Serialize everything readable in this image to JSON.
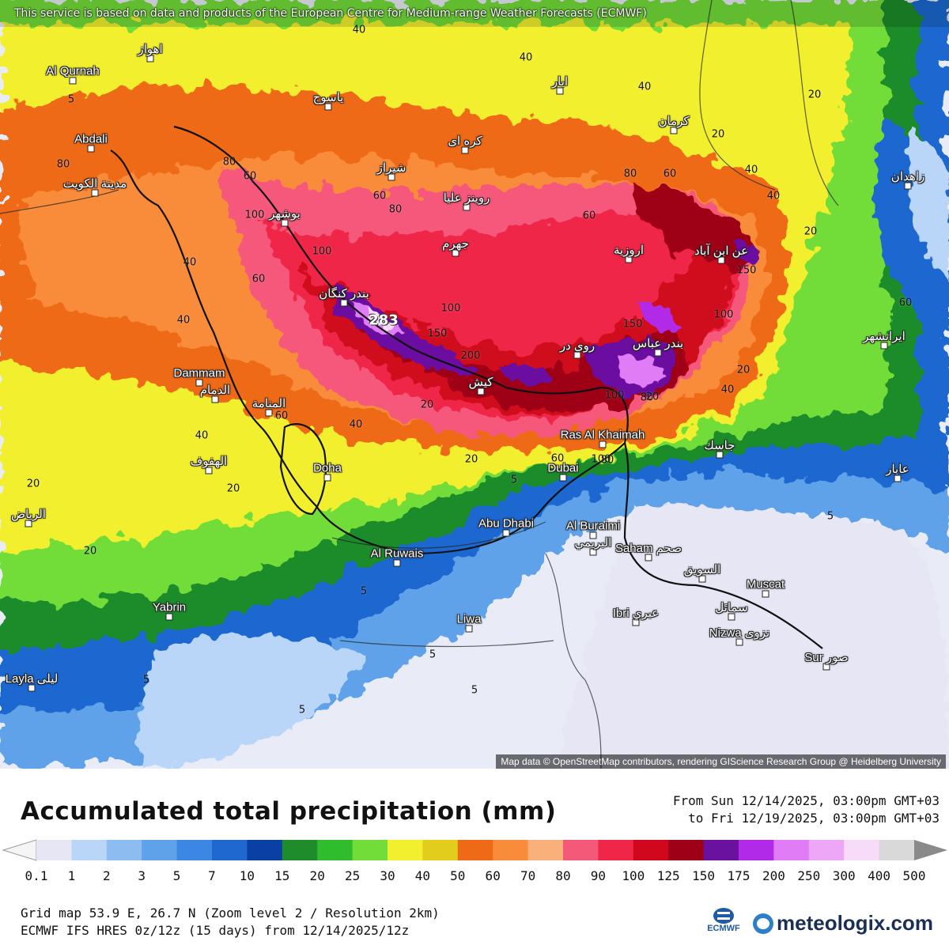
{
  "map": {
    "top_notice": "This service is based on data and products of the European Centre for Medium-range Weather Forecasts (ECMWF)",
    "attribution": "Map data © OpenStreetMap contributors, rendering GIScience Research Group @ Heidelberg University",
    "cities": [
      {
        "name": "Al Qurnah"
      },
      {
        "name": "Abdali"
      },
      {
        "name": "مدينة الكويت"
      },
      {
        "name": "اهواز"
      },
      {
        "name": "بوشهر"
      },
      {
        "name": "شيراز"
      },
      {
        "name": "ياسوج"
      },
      {
        "name": "كره اى"
      },
      {
        "name": "ابار"
      },
      {
        "name": "كرمان"
      },
      {
        "name": "زاهدان"
      },
      {
        "name": "جهرم"
      },
      {
        "name": "روينز عليا"
      },
      {
        "name": "اروزية"
      },
      {
        "name": "عن ابن آباد"
      },
      {
        "name": "بندر كنگان"
      },
      {
        "name": "روى در"
      },
      {
        "name": "بندر عباس"
      },
      {
        "name": "كيش"
      },
      {
        "name": "Dammam"
      },
      {
        "name": "الدمام"
      },
      {
        "name": "المنامة"
      },
      {
        "name": "الهفوف"
      },
      {
        "name": "Doha"
      },
      {
        "name": "الرياض"
      },
      {
        "name": "Ras Al Khaimah"
      },
      {
        "name": "Dubai"
      },
      {
        "name": "Abu Dhabi"
      },
      {
        "name": "Al Buraimi"
      },
      {
        "name": "البريمي"
      },
      {
        "name": "Al Ruwais"
      },
      {
        "name": "Saham صحم"
      },
      {
        "name": "السويق"
      },
      {
        "name": "Muscat"
      },
      {
        "name": "سمائل"
      },
      {
        "name": "Ibri عبري"
      },
      {
        "name": "Nizwa نزوى"
      },
      {
        "name": "Sur صور"
      },
      {
        "name": "Liwa"
      },
      {
        "name": "Yabrin"
      },
      {
        "name": "Layla ليلى"
      },
      {
        "name": "ايرانشهر"
      },
      {
        "name": "جاسك"
      },
      {
        "name": "عابار"
      }
    ],
    "contour_labels": [
      "40",
      "40",
      "40",
      "20",
      "20",
      "60",
      "80",
      "80",
      "100",
      "100",
      "150",
      "200",
      "283",
      "150",
      "100",
      "80",
      "60",
      "60",
      "40",
      "40",
      "40",
      "20",
      "20",
      "20",
      "5",
      "5",
      "5",
      "5",
      "5",
      "5",
      "5",
      "60",
      "40",
      "40",
      "40",
      "20",
      "20",
      "20",
      "60",
      "80",
      "80",
      "100",
      "60",
      "40",
      "20",
      "5",
      "20",
      "60",
      "80",
      "100",
      "150",
      "100",
      "60"
    ]
  },
  "legend": {
    "title": "Accumulated total precipitation (mm)",
    "period_from": "From Sun 12/14/2025, 03:00pm GMT+03",
    "period_to": "to Fri 12/19/2025, 03:00pm GMT+03",
    "ticks": [
      "0.1",
      "1",
      "2",
      "3",
      "5",
      "7",
      "10",
      "15",
      "20",
      "25",
      "30",
      "40",
      "50",
      "60",
      "70",
      "80",
      "90",
      "100",
      "125",
      "150",
      "175",
      "200",
      "250",
      "300",
      "400",
      "500"
    ],
    "colors": [
      "#e6e6f5",
      "#b9d5f8",
      "#8cbcf0",
      "#5fa2ea",
      "#3d87e4",
      "#1e68d0",
      "#0a3fa4",
      "#1e8c2a",
      "#2fbd2d",
      "#72dd39",
      "#f2f02e",
      "#e2cc1c",
      "#ef6a17",
      "#f98c3a",
      "#fab07a",
      "#f5597a",
      "#ef2647",
      "#d0071d",
      "#9e0018",
      "#6a11a0",
      "#b12ae8",
      "#e07cf5",
      "#eea7f6",
      "#f8dbf8",
      "#d9d9d9"
    ],
    "footer_line1": "Grid map 53.9 E, 26.7 N (Zoom level 2 / Resolution 2km)",
    "footer_line2": "ECMWF IFS HRES 0z/12z (15 days) from  12/14/2025/12z",
    "ecmwf_label": "ECMWF",
    "brand": "meteologix.com"
  }
}
